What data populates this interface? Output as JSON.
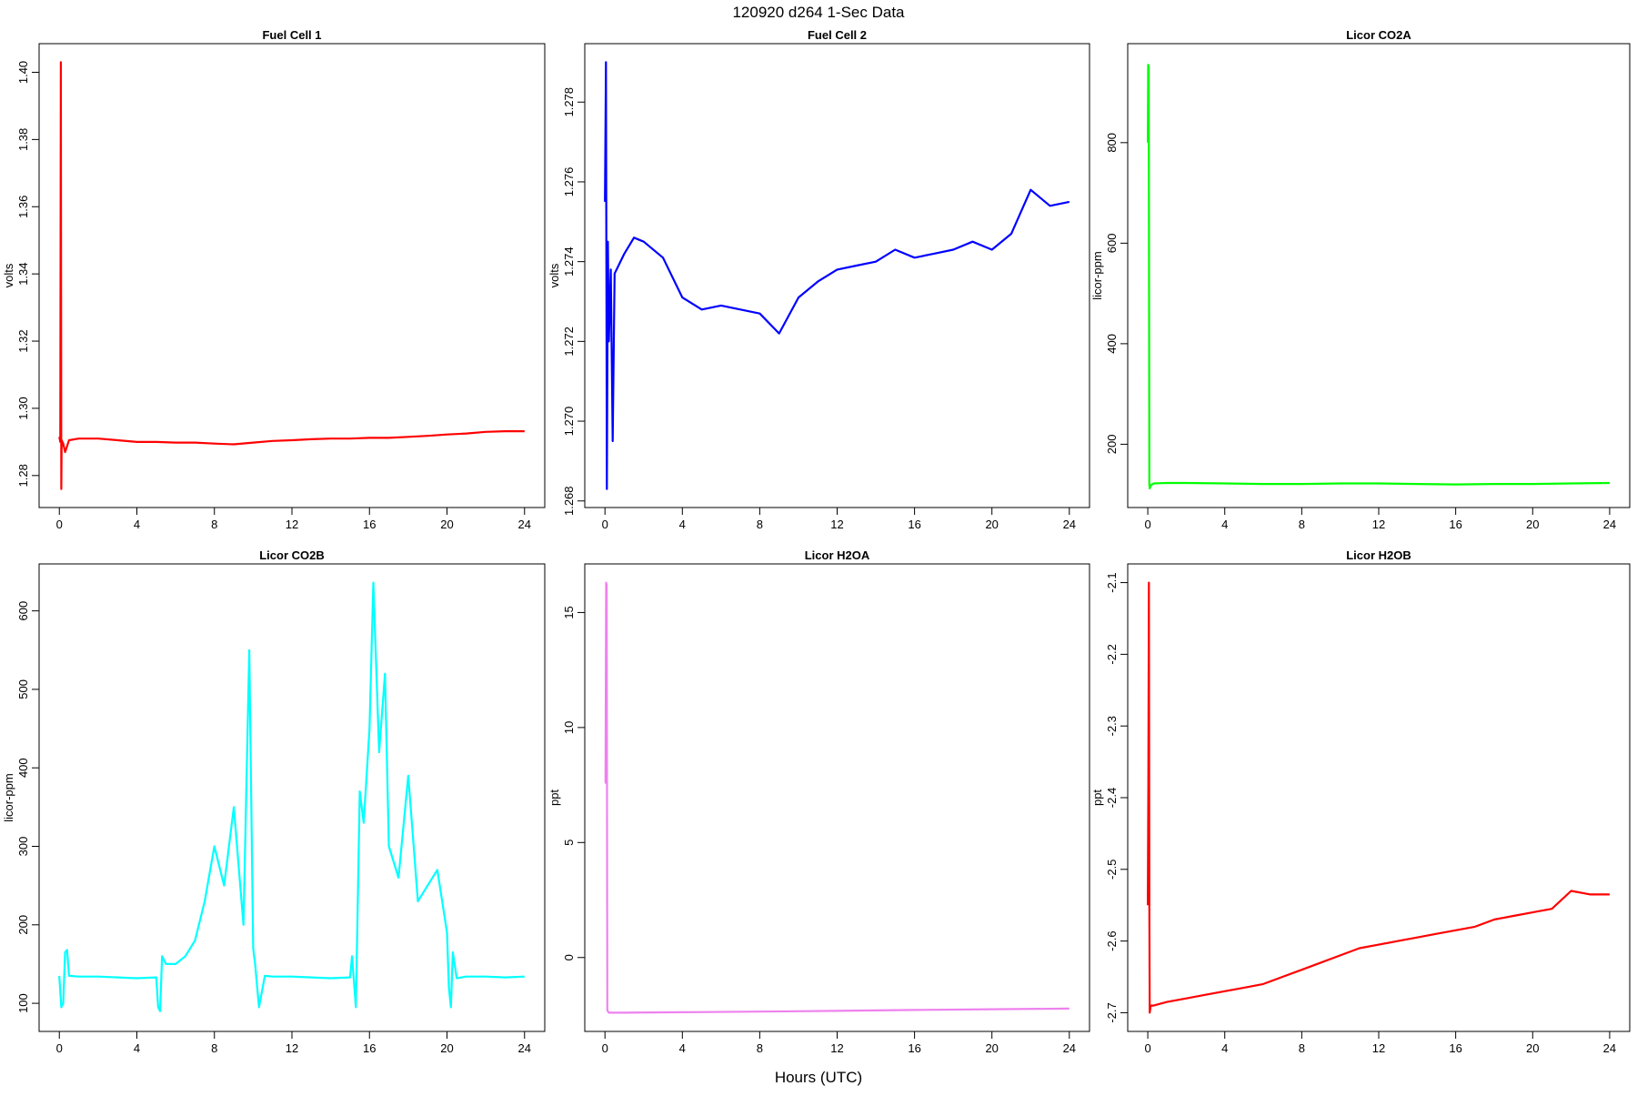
{
  "figure": {
    "title": "120920   d264   1-Sec Data",
    "xlabel": "Hours (UTC)"
  },
  "chart_data": [
    {
      "type": "line",
      "title": "Fuel Cell 1",
      "ylabel": "volts",
      "color": "#ff0000",
      "xlim": [
        0,
        24
      ],
      "ylim": [
        1.276,
        1.403
      ],
      "xticks": [
        0,
        4,
        8,
        12,
        16,
        20,
        24
      ],
      "yticks": [
        "1.28",
        "1.30",
        "1.32",
        "1.34",
        "1.36",
        "1.38",
        "1.40"
      ],
      "series": [
        {
          "x": [
            0,
            0.05,
            0.08,
            0.1,
            0.12,
            0.2,
            0.3,
            0.5,
            1,
            2,
            3,
            4,
            5,
            6,
            7,
            8,
            9,
            10,
            11,
            12,
            13,
            14,
            15,
            16,
            17,
            18,
            19,
            20,
            21,
            22,
            23,
            24
          ],
          "y": [
            1.2915,
            1.29,
            1.403,
            1.276,
            1.2905,
            1.2895,
            1.287,
            1.2905,
            1.291,
            1.291,
            1.2905,
            1.29,
            1.29,
            1.2898,
            1.2898,
            1.2895,
            1.2893,
            1.2898,
            1.2903,
            1.2905,
            1.2908,
            1.291,
            1.291,
            1.2912,
            1.2912,
            1.2915,
            1.2918,
            1.2922,
            1.2925,
            1.293,
            1.2932,
            1.2932
          ]
        }
      ]
    },
    {
      "type": "line",
      "title": "Fuel Cell 2",
      "ylabel": "volts",
      "color": "#0000ff",
      "xlim": [
        0,
        24
      ],
      "ylim": [
        1.2683,
        1.279
      ],
      "xticks": [
        0,
        4,
        8,
        12,
        16,
        20,
        24
      ],
      "yticks": [
        "1.268",
        "1.270",
        "1.272",
        "1.274",
        "1.276",
        "1.278"
      ],
      "series": [
        {
          "x": [
            0,
            0.05,
            0.1,
            0.15,
            0.2,
            0.3,
            0.4,
            0.5,
            1,
            1.5,
            2,
            3,
            4,
            5,
            6,
            7,
            8,
            9,
            10,
            11,
            12,
            13,
            14,
            15,
            16,
            17,
            18,
            19,
            20,
            21,
            22,
            23,
            24
          ],
          "y": [
            1.2755,
            1.279,
            1.2683,
            1.2745,
            1.272,
            1.2738,
            1.2695,
            1.2737,
            1.2742,
            1.2746,
            1.2745,
            1.2741,
            1.2731,
            1.2728,
            1.2729,
            1.2728,
            1.2727,
            1.2722,
            1.2731,
            1.2735,
            1.2738,
            1.2739,
            1.274,
            1.2743,
            1.2741,
            1.2742,
            1.2743,
            1.2745,
            1.2743,
            1.2747,
            1.2758,
            1.2754,
            1.2755
          ]
        }
      ]
    },
    {
      "type": "line",
      "title": "Licor CO2A",
      "ylabel": "licor-ppm",
      "color": "#00ff00",
      "xlim": [
        0,
        24
      ],
      "ylim": [
        111,
        960
      ],
      "xticks": [
        0,
        4,
        8,
        12,
        16,
        20,
        24
      ],
      "yticks": [
        "200",
        "400",
        "600",
        "800"
      ],
      "series": [
        {
          "x": [
            0,
            0.02,
            0.05,
            0.08,
            0.1,
            0.15,
            0.3,
            1,
            2,
            4,
            6,
            8,
            10,
            12,
            14,
            16,
            18,
            20,
            22,
            24
          ],
          "y": [
            800,
            955,
            950,
            120,
            112,
            118,
            122,
            123,
            123,
            122,
            121,
            121,
            122,
            122,
            121,
            120,
            121,
            121,
            122,
            123
          ]
        }
      ]
    },
    {
      "type": "line",
      "title": "Licor CO2B",
      "ylabel": "licor-ppm",
      "color": "#00ffff",
      "xlim": [
        0,
        24
      ],
      "ylim": [
        88,
        636
      ],
      "xticks": [
        0,
        4,
        8,
        12,
        16,
        20,
        24
      ],
      "yticks": [
        "100",
        "200",
        "300",
        "400",
        "500",
        "600"
      ],
      "series": [
        {
          "x": [
            0,
            0.1,
            0.2,
            0.3,
            0.4,
            0.5,
            1,
            2,
            3,
            4,
            5,
            5.1,
            5.2,
            5.3,
            5.5,
            6,
            6.5,
            7,
            7.5,
            8,
            8.5,
            9,
            9.5,
            9.8,
            10,
            10.1,
            10.3,
            10.6,
            11,
            12,
            13,
            14,
            15,
            15.1,
            15.3,
            15.5,
            15.7,
            16,
            16.2,
            16.5,
            16.8,
            17,
            17.5,
            18,
            18.5,
            19,
            19.5,
            20,
            20.1,
            20.2,
            20.3,
            20.5,
            21,
            22,
            23,
            24
          ],
          "y": [
            135,
            95,
            100,
            165,
            168,
            135,
            134,
            134,
            133,
            132,
            133,
            95,
            90,
            160,
            150,
            150,
            160,
            180,
            230,
            300,
            250,
            350,
            200,
            550,
            170,
            150,
            95,
            135,
            134,
            134,
            133,
            132,
            133,
            160,
            95,
            370,
            330,
            450,
            636,
            420,
            520,
            300,
            260,
            390,
            230,
            250,
            270,
            190,
            120,
            95,
            165,
            132,
            134,
            134,
            133,
            134
          ]
        }
      ]
    },
    {
      "type": "line",
      "title": "Licor H2OA",
      "ylabel": "ppt",
      "color": "#ee82ee",
      "xlim": [
        0,
        24
      ],
      "ylim": [
        -2.4,
        16.3
      ],
      "xticks": [
        0,
        4,
        8,
        12,
        16,
        20,
        24
      ],
      "yticks": [
        "0",
        "5",
        "10",
        "15"
      ],
      "series": [
        {
          "x": [
            0,
            0.03,
            0.06,
            0.09,
            0.12,
            0.2,
            1,
            4,
            8,
            12,
            16,
            20,
            24
          ],
          "y": [
            7.6,
            7.6,
            16.3,
            16.2,
            -2.3,
            -2.4,
            -2.4,
            -2.38,
            -2.35,
            -2.32,
            -2.28,
            -2.25,
            -2.22
          ]
        }
      ]
    },
    {
      "type": "line",
      "title": "Licor H2OB",
      "ylabel": "ppt",
      "color": "#ff0000",
      "xlim": [
        0,
        24
      ],
      "ylim": [
        -2.7,
        -2.1
      ],
      "xticks": [
        0,
        4,
        8,
        12,
        16,
        20,
        24
      ],
      "yticks": [
        "-2.7",
        "-2.6",
        "-2.5",
        "-2.4",
        "-2.3",
        "-2.2",
        "-2.1"
      ],
      "series": [
        {
          "x": [
            0,
            0.03,
            0.06,
            0.08,
            0.1,
            0.15,
            0.3,
            1,
            2,
            3,
            4,
            5,
            6,
            7,
            8,
            9,
            10,
            11,
            12,
            13,
            14,
            15,
            16,
            17,
            18,
            19,
            20,
            21,
            22,
            23,
            24
          ],
          "y": [
            -2.55,
            -2.38,
            -2.1,
            -2.55,
            -2.7,
            -2.69,
            -2.69,
            -2.685,
            -2.68,
            -2.675,
            -2.67,
            -2.665,
            -2.66,
            -2.65,
            -2.64,
            -2.63,
            -2.62,
            -2.61,
            -2.605,
            -2.6,
            -2.595,
            -2.59,
            -2.585,
            -2.58,
            -2.57,
            -2.565,
            -2.56,
            -2.555,
            -2.53,
            -2.535,
            -2.535
          ]
        }
      ]
    }
  ]
}
